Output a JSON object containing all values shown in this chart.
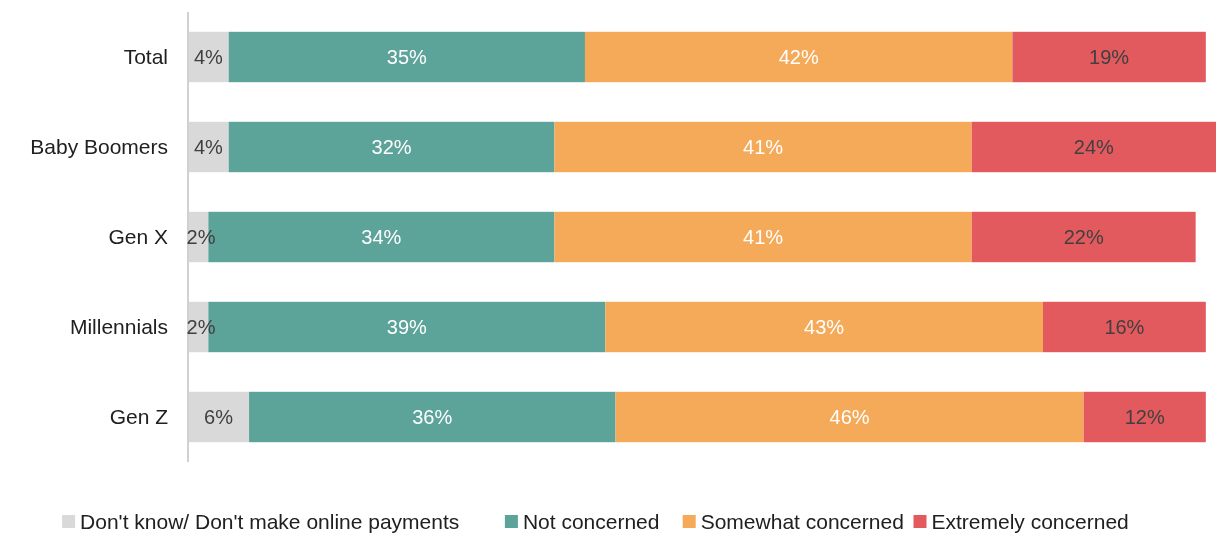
{
  "chart_data": {
    "type": "bar",
    "orientation": "horizontal",
    "stacked": true,
    "categories": [
      "Total",
      "Baby Boomers",
      "Gen X",
      "Millennials",
      "Gen Z"
    ],
    "series": [
      {
        "name": "Don't know/ Don't make online payments",
        "color": "#d9d9d9",
        "values": [
          4,
          4,
          2,
          2,
          6
        ],
        "value_labels": [
          "4%",
          "4%",
          "2%",
          "2%",
          "6%"
        ]
      },
      {
        "name": "Not concerned",
        "color": "#5ca39a",
        "values": [
          35,
          32,
          34,
          39,
          36
        ],
        "value_labels": [
          "35%",
          "32%",
          "34%",
          "39%",
          "36%"
        ]
      },
      {
        "name": "Somewhat concerned",
        "color": "#f5aa59",
        "values": [
          42,
          41,
          41,
          43,
          46
        ],
        "value_labels": [
          "42%",
          "41%",
          "41%",
          "43%",
          "46%"
        ]
      },
      {
        "name": "Extremely concerned",
        "color": "#e35a5e",
        "values": [
          19,
          24,
          22,
          16,
          12
        ],
        "value_labels": [
          "19%",
          "24%",
          "22%",
          "16%",
          "12%"
        ]
      }
    ],
    "tick_labels": "y",
    "legend": "bottom"
  }
}
